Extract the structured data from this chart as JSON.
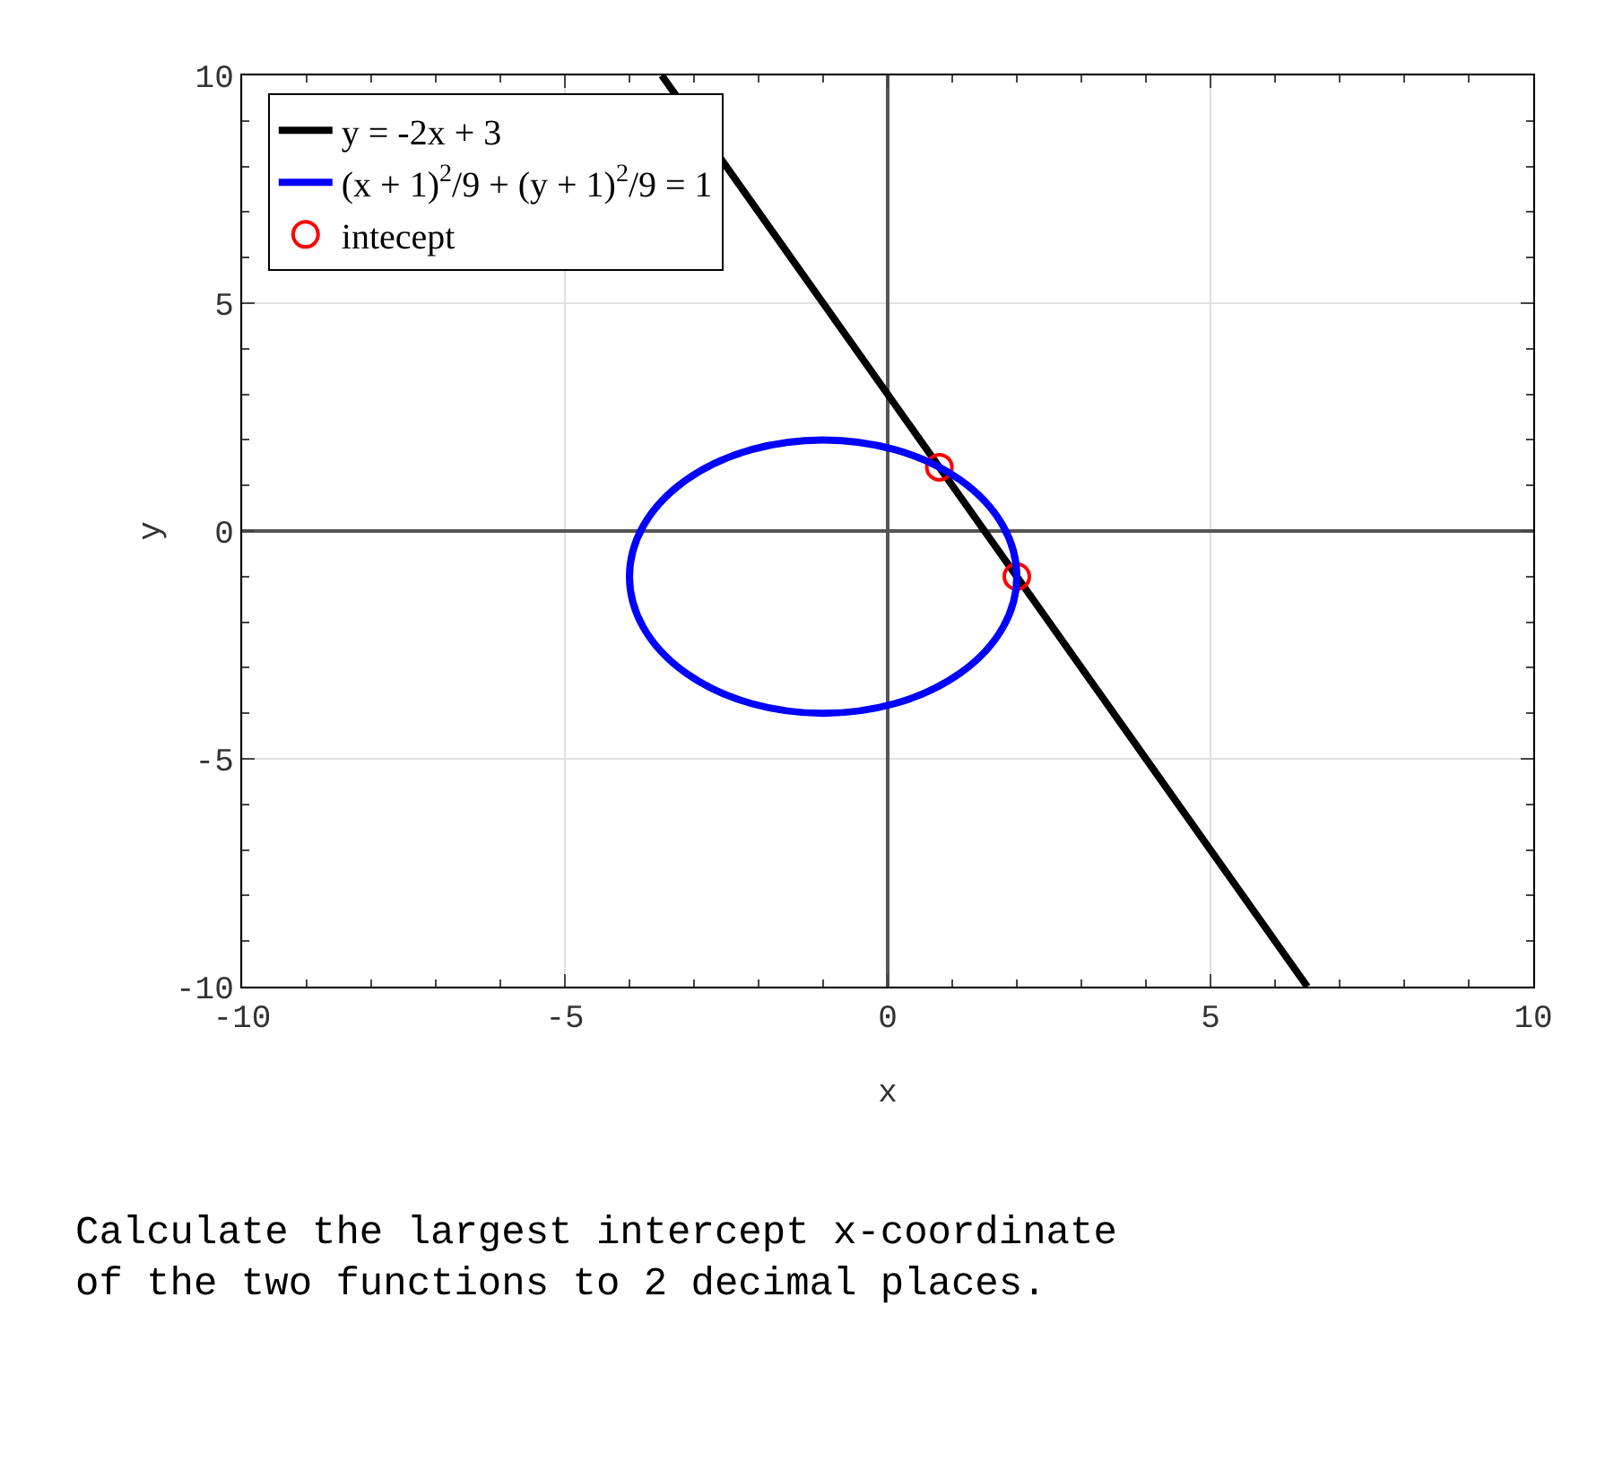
{
  "chart_data": {
    "type": "line",
    "xlabel": "x",
    "ylabel": "y",
    "xlim": [
      -10,
      10
    ],
    "ylim": [
      -10,
      10
    ],
    "xticks": [
      -10,
      -5,
      0,
      5,
      10
    ],
    "yticks": [
      -10,
      -5,
      0,
      5,
      10
    ],
    "grid": true,
    "legend": "top left",
    "series": [
      {
        "name": "y = -2x + 3",
        "color": "#000000",
        "x": [
          -3.5,
          6.5
        ],
        "values": [
          10,
          -10
        ]
      },
      {
        "name": "(x + 1)$^{2}$/9 + (y + 1)$^{2}$/9 = 1",
        "color": "#0000ff"
      },
      {
        "name": "intecept",
        "color": "#ff0000",
        "type": "scatter",
        "marker": "circle",
        "x": [
          0.8,
          2
        ],
        "values": [
          1.4,
          -1
        ]
      }
    ],
    "annotations": [
      "Calculate the largest intercept x-coordinate\nof the two functions to 2 decimal places."
    ]
  }
}
